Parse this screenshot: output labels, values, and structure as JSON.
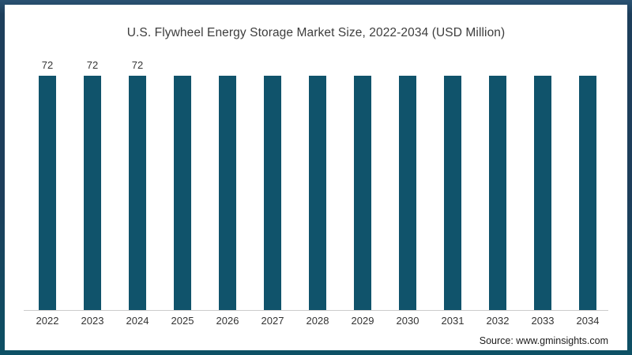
{
  "chart_data": {
    "type": "bar",
    "title": "U.S. Flywheel Energy Storage Market Size, 2022-2034 (USD Million)",
    "categories": [
      "2022",
      "2023",
      "2024",
      "2025",
      "2026",
      "2027",
      "2028",
      "2029",
      "2030",
      "2031",
      "2032",
      "2033",
      "2034"
    ],
    "values": [
      72,
      72,
      72,
      null,
      null,
      null,
      null,
      null,
      null,
      null,
      null,
      null,
      null
    ],
    "data_labels_visible_on": [
      "2022",
      "2023",
      "2024"
    ],
    "xlabel": "",
    "ylabel": "",
    "legend": "none",
    "gridlines": false,
    "y_axis_shown": false,
    "all_bars_equal_height": true,
    "bar_color": "#10536b",
    "axis_line_color": "#cccccc",
    "label_color": "#363636"
  },
  "frame": {
    "border_top_color": "#1d3e5b",
    "border_bottom_color": "#0d5065",
    "background_color": "#ffffff"
  },
  "source": {
    "label": "Source: www.gminsights.com"
  }
}
